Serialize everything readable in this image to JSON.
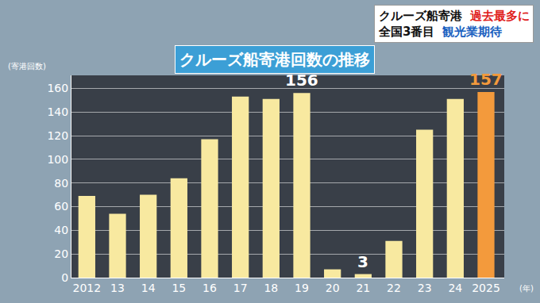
{
  "chart_data": {
    "type": "bar",
    "title": "クルーズ船寄港回数の推移",
    "subtitle": [
      [
        "クルーズ船寄港",
        "過去最多に"
      ],
      [
        "全国3番目",
        "観光業期待"
      ]
    ],
    "y_label": "(寄港回数)",
    "x_label": "(年)",
    "categories": [
      "2012",
      "13",
      "14",
      "15",
      "16",
      "17",
      "18",
      "19",
      "20",
      "21",
      "22",
      "23",
      "24",
      "2025"
    ],
    "values": [
      69,
      54,
      70,
      84,
      117,
      153,
      151,
      156,
      7,
      3,
      31,
      125,
      151,
      157
    ],
    "colors": [
      "#f8e9a0",
      "#f8e9a0",
      "#f8e9a0",
      "#f8e9a0",
      "#f8e9a0",
      "#f8e9a0",
      "#f8e9a0",
      "#f8e9a0",
      "#f8e9a0",
      "#f8e9a0",
      "#f8e9a0",
      "#f8e9a0",
      "#f8e9a0",
      "#f39a3c"
    ],
    "annotations": [
      {
        "category": "19",
        "text": "156"
      },
      {
        "category": "21",
        "text": "3"
      },
      {
        "category": "2025",
        "text": "157"
      }
    ],
    "ylim": [
      0,
      171
    ],
    "yticks": [
      0,
      20,
      40,
      60,
      80,
      100,
      120,
      140,
      160
    ],
    "grid": true
  }
}
